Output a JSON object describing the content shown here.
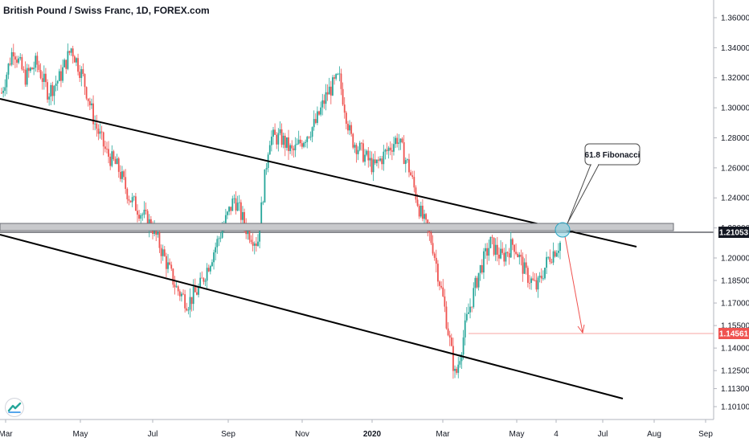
{
  "title": "British Pound / Swiss Franc, 1D, FOREX.com",
  "colors": {
    "up": "#26a69a",
    "down": "#ef5350",
    "grid": "#f0f3fa",
    "axis": "#131722",
    "tag_dark": "#131722",
    "tag_red": "#ef5350",
    "accent_circle": "#4fc3d8"
  },
  "logo_icon": "tradingview-logo-icon",
  "chart_data": {
    "type": "candlestick",
    "ylim": [
      1.0985,
      1.3695
    ],
    "y_ticks": [
      "1.36000",
      "1.34000",
      "1.32000",
      "1.30000",
      "1.28000",
      "1.26000",
      "1.24000",
      "1.22000",
      "1.20000",
      "1.18500",
      "1.17000",
      "1.15500",
      "1.14000",
      "1.12500",
      "1.11300",
      "1.10100"
    ],
    "x_ticks": [
      "Mar",
      "May",
      "Jul",
      "Sep",
      "Nov",
      "2020",
      "Mar",
      "May",
      "4",
      "Jul",
      "Aug",
      "Sep"
    ],
    "price_labels": {
      "current": "1.21053",
      "target": "1.14561"
    },
    "annotation": "61.8 Fibonacci",
    "series": [
      {
        "range": [
          "2019-03",
          "2019-04"
        ],
        "trend": [
          1.31,
          1.34,
          1.32,
          1.33,
          1.31,
          1.32,
          1.34
        ]
      },
      {
        "range": [
          "2019-05",
          "2019-08"
        ],
        "trend": [
          1.32,
          1.29,
          1.27,
          1.26,
          1.24,
          1.23,
          1.22,
          1.2,
          1.18,
          1.17
        ]
      },
      {
        "range": [
          "2019-08",
          "2019-10"
        ],
        "trend": [
          1.18,
          1.2,
          1.22,
          1.24,
          1.22,
          1.21
        ]
      },
      {
        "range": [
          "2019-10",
          "2019-12"
        ],
        "trend": [
          1.28,
          1.28,
          1.27,
          1.28,
          1.29,
          1.31,
          1.32
        ]
      },
      {
        "range": [
          "2019-12",
          "2020-03"
        ],
        "trend": [
          1.28,
          1.27,
          1.26,
          1.27,
          1.28,
          1.26,
          1.23
        ]
      },
      {
        "range": [
          "2020-03",
          "2020-06"
        ],
        "trend": [
          1.21,
          1.17,
          1.12,
          1.16,
          1.19,
          1.21,
          1.2,
          1.21,
          1.19,
          1.18,
          1.2,
          1.21
        ]
      }
    ]
  }
}
